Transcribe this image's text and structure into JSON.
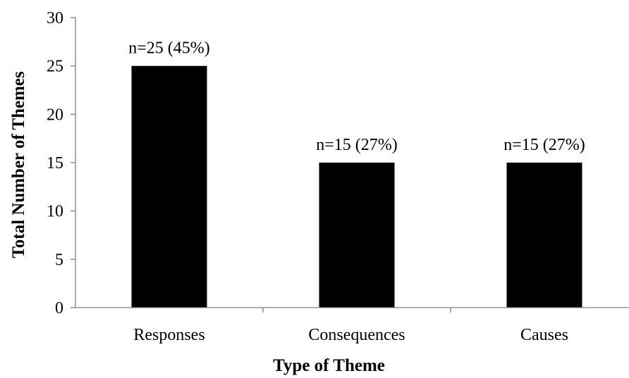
{
  "chart_data": {
    "type": "bar",
    "categories": [
      "Responses",
      "Consequences",
      "Causes"
    ],
    "values": [
      25,
      15,
      15
    ],
    "data_labels": [
      "n=25 (45%)",
      "n=15 (27%)",
      "n=15 (27%)"
    ],
    "xlabel": "Type of Theme",
    "ylabel": "Total Number of Themes",
    "ylim": [
      0,
      30
    ],
    "yticks": [
      0,
      5,
      10,
      15,
      20,
      25,
      30
    ],
    "ytick_labels": [
      "0",
      "5",
      "10",
      "15",
      "20",
      "25",
      "30"
    ],
    "grid": false,
    "legend": "none",
    "bar_color": "#000000",
    "axis_color": "#7f7f7f"
  }
}
